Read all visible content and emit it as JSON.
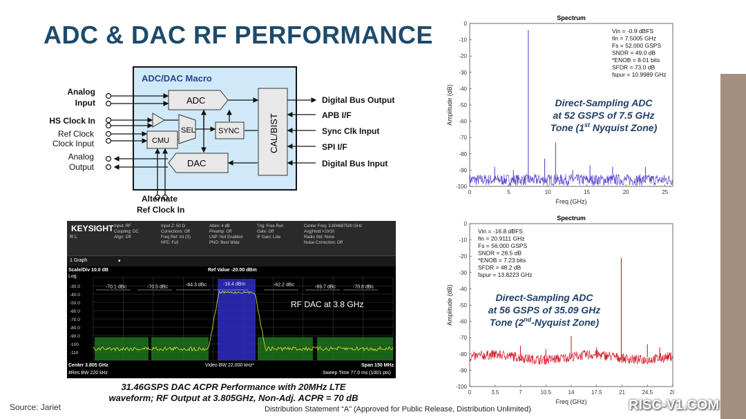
{
  "slide": {
    "title": "ADC & DAC RF PERFORMANCE",
    "source": "Source: Jariet",
    "distribution": "Distribution Statement “A” (Approved for Public Release, Distribution Unlimited)",
    "watermark": "RISC-V1.COM"
  },
  "diagram": {
    "macro_label": "ADC/DAC Macro",
    "blocks": {
      "adc": "ADC",
      "dac": "DAC",
      "sel": "SEL",
      "sync": "SYNC",
      "cmu": "CMU",
      "calbist": "CAL/BIST"
    },
    "left_labels": {
      "analog_input": [
        "Analog",
        "Input"
      ],
      "hs_clock_in": "HS Clock In",
      "ref_clock": [
        "Ref Clock",
        "Clock Input"
      ],
      "analog_output": [
        "Analog",
        "Output"
      ]
    },
    "right_labels": {
      "digital_bus_output": "Digital Bus Output",
      "apb": "APB I/F",
      "sync_clk": "Sync Clk Input",
      "spi": "SPI I/F",
      "digital_bus_input": "Digital Bus Input"
    },
    "bottom_label": [
      "Alternate",
      "Ref Clock In"
    ]
  },
  "sa": {
    "brand": "KEYSIGHT",
    "rl": "R L",
    "header_cols": [
      "Input: RF\nCoupling: DC\nAlign: Off",
      "Input Z: 50 Ω\nCorrections: Off\nFreq Ref: Int (S)\nNFE: Full",
      "Atten: 4 dB\nPreamp: Off\nLNP: Not Enabled\nPNO: Best Wide",
      "Trig: Free Run\nGate: Off\nIF Gain: Low",
      "Center Freq: 3.804687500 GHz\nAvg|Hold:>10/10\nRadio Std: None\nNoise Correction: Off"
    ],
    "graph_label": "1 Graph",
    "scale": "Scale/Div 10.0 dB",
    "log": "Log",
    "ref_value": "Ref Value -20.00 dBm",
    "rf_dac_label": "RF DAC at 3.8 GHz",
    "yticks": [
      "-30.0",
      "-40.0",
      "-50.0",
      "-60.0",
      "-70.0",
      "-80.0",
      "-90.0",
      "-100",
      "-110"
    ],
    "acpr": [
      "-70.1 dBc",
      "-70.5 dBc",
      "-64.3 dBc",
      "-16.4 dBm",
      "-62.2 dBc",
      "-69.7 dBc",
      "-70.8 dBc"
    ],
    "center": "Center 3.805 GHz",
    "res_bw": "#Res BW 220 kHz",
    "video_bw": "Video BW 22.000 kHz*",
    "span": "Span 150 MHz",
    "sweep": "Sweep Time 77.0 ms  (1001 pts)",
    "caption": [
      "31.46GSPS DAC ACPR Performance with 20MHz LTE",
      "waveform; RF Output at 3.805GHz, Non-Adj. ACPR = 70 dB"
    ]
  },
  "chart_data": [
    {
      "type": "line",
      "title": "Spectrum",
      "xlabel": "Freq (GHz)",
      "ylabel": "Amplitude (dB)",
      "xlim": [
        0,
        26
      ],
      "ylim": [
        -100,
        0
      ],
      "xticks": [
        "0",
        "5",
        "10",
        "15",
        "20",
        "25"
      ],
      "yticks": [
        "0",
        "-10",
        "-20",
        "-30",
        "-40",
        "-50",
        "-60",
        "-70",
        "-80",
        "-90",
        "-100"
      ],
      "color": "#5a45c8",
      "noise_floor": -96,
      "spurs": [
        [
          7.5,
          -4
        ],
        [
          11.0,
          -73
        ],
        [
          9.6,
          -83
        ],
        [
          3.2,
          -88
        ],
        [
          15.4,
          -87
        ],
        [
          18.3,
          -88
        ],
        [
          22.5,
          -88
        ],
        [
          5.6,
          -90
        ],
        [
          13.2,
          -90
        ]
      ],
      "stats": [
        "Vin = -0.9 dBFS",
        "fin = 7.5005 GHz",
        "Fs = 52.000 GSPS",
        "SNDR = 49.0 dB",
        "*ENOB = 8.01 bits",
        "SFDR = 73.0 dB",
        "fspur = 10.9989 GHz"
      ],
      "caption": [
        "Direct-Sampling ADC",
        "at 52 GSPS of 7.5 GHz",
        "Tone (1st Nyquist Zone)"
      ]
    },
    {
      "type": "line",
      "title": "Spectrum",
      "xlabel": "Freq (GHz)",
      "ylabel": "Amplitude (dB)",
      "xlim": [
        0,
        28
      ],
      "ylim": [
        -100,
        0
      ],
      "xticks": [
        "0",
        "3.5",
        "7",
        "10.5",
        "14",
        "17.5",
        "21",
        "24.5",
        "28"
      ],
      "yticks": [
        "0",
        "-10",
        "-20",
        "-30",
        "-40",
        "-50",
        "-60",
        "-70",
        "-80",
        "-90",
        "-100"
      ],
      "color": "#d11a2a",
      "noise_floor": -82,
      "spurs": [
        [
          20.9,
          -21
        ],
        [
          14.0,
          -69
        ],
        [
          7.0,
          -75
        ],
        [
          10.5,
          -77
        ],
        [
          24.5,
          -74
        ],
        [
          17.5,
          -76
        ],
        [
          3.5,
          -78
        ],
        [
          26.2,
          -76
        ]
      ],
      "stats": [
        "Vin = -16.8 dBFS",
        "fin = 20.9111 GHz",
        "Fs = 56.000 GSPS",
        "SNDR = 28.5 dB",
        "*ENOB = 7.23 bits",
        "SFDR = 48.2 dB",
        "fspur = 13.8223 GHz"
      ],
      "caption": [
        "Direct-Sampling ADC",
        "at 56 GSPS of 35.09 GHz",
        "Tone (2nd-Nyquist Zone)"
      ]
    }
  ]
}
